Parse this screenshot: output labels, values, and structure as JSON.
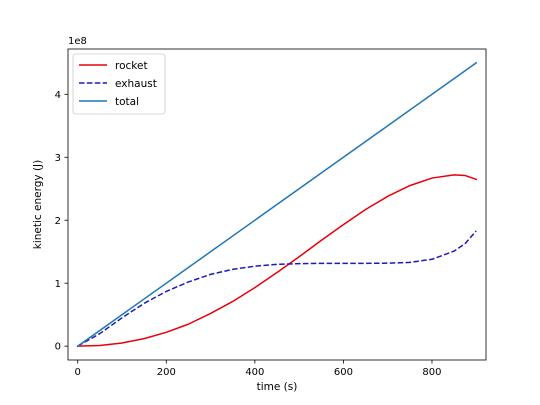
{
  "chart_data": {
    "type": "line",
    "title": "",
    "xlabel": "time (s)",
    "ylabel": "kinetic energy (J)",
    "xlim": [
      -22,
      922
    ],
    "ylim": [
      -22000000,
      472000000
    ],
    "y_offset_label": "1e8",
    "y_scale_factor": 100000000,
    "xticks": [
      0,
      200,
      400,
      600,
      800
    ],
    "xtick_labels": [
      "0",
      "200",
      "400",
      "600",
      "800"
    ],
    "yticks": [
      0,
      100000000,
      200000000,
      300000000,
      400000000
    ],
    "ytick_labels": [
      "0",
      "1",
      "2",
      "3",
      "4"
    ],
    "grid": false,
    "legend_position": "top-left",
    "series": [
      {
        "name": "rocket",
        "color": "#e8000b",
        "dash": "solid",
        "x": [
          0,
          50,
          100,
          150,
          200,
          250,
          300,
          350,
          400,
          450,
          500,
          550,
          600,
          650,
          700,
          750,
          800,
          850,
          875,
          900
        ],
        "y": [
          0,
          1000000,
          5000000,
          12000000,
          22000000,
          35000000,
          52000000,
          71000000,
          93000000,
          117000000,
          142000000,
          168000000,
          193000000,
          217000000,
          238000000,
          255000000,
          267000000,
          272000000,
          271000000,
          265000000
        ]
      },
      {
        "name": "exhaust",
        "color": "#1a1abf",
        "dash": "dashed",
        "x": [
          0,
          50,
          100,
          150,
          200,
          250,
          300,
          350,
          400,
          450,
          500,
          550,
          600,
          650,
          700,
          750,
          800,
          850,
          875,
          900
        ],
        "y": [
          0,
          20000000,
          45000000,
          68000000,
          87000000,
          102000000,
          114000000,
          122000000,
          127000000,
          130000000,
          131000000,
          131500000,
          131500000,
          131500000,
          131800000,
          133000000,
          138000000,
          151000000,
          163000000,
          183000000
        ]
      },
      {
        "name": "total",
        "color": "#1f77b4",
        "dash": "solid",
        "x": [
          0,
          900
        ],
        "y": [
          0,
          450000000
        ]
      }
    ]
  }
}
